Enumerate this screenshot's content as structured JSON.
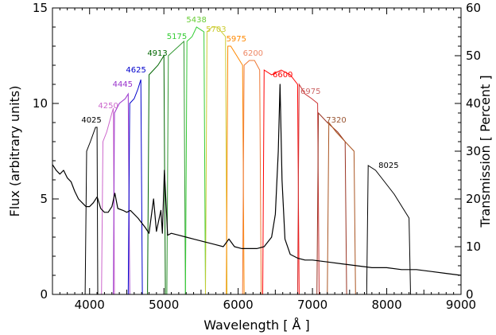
{
  "chart_data": {
    "type": "line",
    "xlabel": "Wavelength [ Å ]",
    "ylabel": "Flux (arbitrary units)",
    "y2label": "Transmission [ Percent ]",
    "xlim": [
      3500,
      9000
    ],
    "ylim": [
      0,
      15
    ],
    "y2lim": [
      0,
      60
    ],
    "x_ticks": [
      4000,
      5000,
      6000,
      7000,
      8000,
      9000
    ],
    "y_ticks": [
      0,
      5,
      10,
      15
    ],
    "y2_ticks": [
      0,
      10,
      20,
      30,
      40,
      50,
      60
    ],
    "grid": false,
    "series": [
      {
        "color": "#000000",
        "x": [
          3500,
          3550,
          3600,
          3650,
          3700,
          3750,
          3800,
          3850,
          3900,
          3950,
          4000,
          4050,
          4100,
          4102,
          4150,
          4200,
          4250,
          4300,
          4340,
          4380,
          4450,
          4500,
          4550,
          4650,
          4750,
          4800,
          4861,
          4900,
          4959,
          4980,
          5007,
          5050,
          5100,
          5200,
          5300,
          5400,
          5500,
          5600,
          5700,
          5800,
          5876,
          5950,
          6050,
          6150,
          6250,
          6350,
          6450,
          6500,
          6540,
          6563,
          6590,
          6630,
          6700,
          6800,
          6900,
          7000,
          7200,
          7400,
          7600,
          7800,
          8000,
          8200,
          8400,
          8600,
          8800,
          9000
        ],
        "y": [
          6.8,
          6.5,
          6.3,
          6.5,
          6.1,
          5.9,
          5.4,
          5.0,
          4.8,
          4.6,
          4.6,
          4.8,
          5.1,
          5.1,
          4.5,
          4.3,
          4.3,
          4.6,
          5.3,
          4.5,
          4.4,
          4.3,
          4.4,
          4.0,
          3.5,
          3.2,
          5.0,
          3.3,
          4.4,
          3.2,
          6.5,
          3.1,
          3.2,
          3.1,
          3.0,
          2.9,
          2.8,
          2.7,
          2.6,
          2.5,
          2.9,
          2.5,
          2.4,
          2.4,
          2.4,
          2.5,
          3.0,
          4.2,
          7.5,
          11.0,
          6.0,
          2.9,
          2.1,
          1.9,
          1.8,
          1.8,
          1.7,
          1.6,
          1.5,
          1.4,
          1.4,
          1.3,
          1.3,
          1.2,
          1.1,
          1.0
        ]
      }
    ],
    "filters": [
      {
        "label": "4025",
        "color": "#000000",
        "x": [
          3940,
          3960,
          4010,
          4080,
          4100,
          4110
        ],
        "y": [
          0,
          30,
          32,
          35,
          35,
          0
        ]
      },
      {
        "label": "4250",
        "color": "#cc66cc",
        "x": [
          4160,
          4180,
          4230,
          4300,
          4320,
          4335
        ],
        "y": [
          0,
          32,
          34,
          38,
          39,
          0
        ]
      },
      {
        "label": "4445",
        "color": "#9933cc",
        "x": [
          4320,
          4335,
          4400,
          4480,
          4520,
          4540
        ],
        "y": [
          0,
          38,
          40,
          41,
          42,
          0
        ]
      },
      {
        "label": "4625",
        "color": "#0000cc",
        "x": [
          4520,
          4540,
          4600,
          4650,
          4690,
          4710
        ],
        "y": [
          0,
          40,
          41,
          43,
          45,
          0
        ]
      },
      {
        "label": "4913",
        "color": "#006600",
        "x": [
          4780,
          4800,
          4860,
          4920,
          5000,
          5020
        ],
        "y": [
          0,
          46,
          47,
          48,
          50,
          0
        ]
      },
      {
        "label": "5175",
        "color": "#339933",
        "x": [
          5040,
          5060,
          5130,
          5200,
          5270,
          5290
        ],
        "y": [
          0,
          50,
          51,
          52,
          53,
          0
        ]
      },
      {
        "label": "5438",
        "color": "#33cc33",
        "x": [
          5290,
          5310,
          5380,
          5440,
          5540,
          5560
        ],
        "y": [
          0,
          53,
          54,
          56,
          55,
          0
        ]
      },
      {
        "label": "5703",
        "color": "#cccc33",
        "x": [
          5560,
          5580,
          5650,
          5720,
          5830,
          5850
        ],
        "y": [
          0,
          55,
          56,
          56,
          54,
          0
        ]
      },
      {
        "label": "5975",
        "color": "#ff8800",
        "x": [
          5840,
          5860,
          5900,
          5980,
          6060,
          6080
        ],
        "y": [
          0,
          52,
          52,
          50,
          48,
          0
        ]
      },
      {
        "label": "6200",
        "color": "#ee7733",
        "x": [
          6060,
          6080,
          6150,
          6220,
          6290,
          6310
        ],
        "y": [
          0,
          48,
          49,
          49,
          47,
          0
        ]
      },
      {
        "label": "6600",
        "color": "#ff0000",
        "x": [
          6330,
          6350,
          6450,
          6580,
          6700,
          6800,
          6820
        ],
        "y": [
          0,
          47,
          46,
          47,
          46,
          44,
          0
        ]
      },
      {
        "label": "6975",
        "color": "#cc3333",
        "x": [
          6800,
          6820,
          6900,
          6990,
          7070,
          7090
        ],
        "y": [
          0,
          44,
          42,
          41,
          40,
          0
        ]
      },
      {
        "label": "7320",
        "color": "#993322",
        "x": [
          7060,
          7080,
          7200,
          7340,
          7440,
          7460
        ],
        "y": [
          0,
          38,
          36,
          34,
          32,
          0
        ]
      },
      {
        "label": "7320",
        "color": "#aa5522",
        "x": [
          7200,
          7220,
          7320,
          7440,
          7560,
          7580
        ],
        "y": [
          0,
          36,
          34,
          32,
          30,
          0
        ]
      },
      {
        "label": "8025",
        "color": "#000000",
        "x": [
          7730,
          7750,
          7850,
          7950,
          8100,
          8300,
          8320
        ],
        "y": [
          0,
          27,
          26,
          24,
          21,
          16,
          0
        ]
      }
    ],
    "filter_labels": [
      {
        "text": "4025",
        "color": "#000000",
        "x": 4025,
        "y": 36
      },
      {
        "text": "4250",
        "color": "#cc66cc",
        "x": 4250,
        "y": 39
      },
      {
        "text": "4445",
        "color": "#9933cc",
        "x": 4445,
        "y": 43.5
      },
      {
        "text": "4625",
        "color": "#0000cc",
        "x": 4625,
        "y": 46.5
      },
      {
        "text": "4913",
        "color": "#006600",
        "x": 4913,
        "y": 50
      },
      {
        "text": "5175",
        "color": "#33cc33",
        "x": 5175,
        "y": 53.5
      },
      {
        "text": "5438",
        "color": "#66cc33",
        "x": 5438,
        "y": 57
      },
      {
        "text": "5703",
        "color": "#cccc33",
        "x": 5703,
        "y": 55
      },
      {
        "text": "5975",
        "color": "#ff8800",
        "x": 5975,
        "y": 53
      },
      {
        "text": "6200",
        "color": "#ee8866",
        "x": 6200,
        "y": 50
      },
      {
        "text": "6600",
        "color": "#ff0000",
        "x": 6600,
        "y": 45.5
      },
      {
        "text": "6975",
        "color": "#cc6666",
        "x": 6975,
        "y": 42
      },
      {
        "text": "7320",
        "color": "#995533",
        "x": 7320,
        "y": 36
      },
      {
        "text": "8025",
        "color": "#000000",
        "x": 8025,
        "y": 26.5
      }
    ]
  }
}
